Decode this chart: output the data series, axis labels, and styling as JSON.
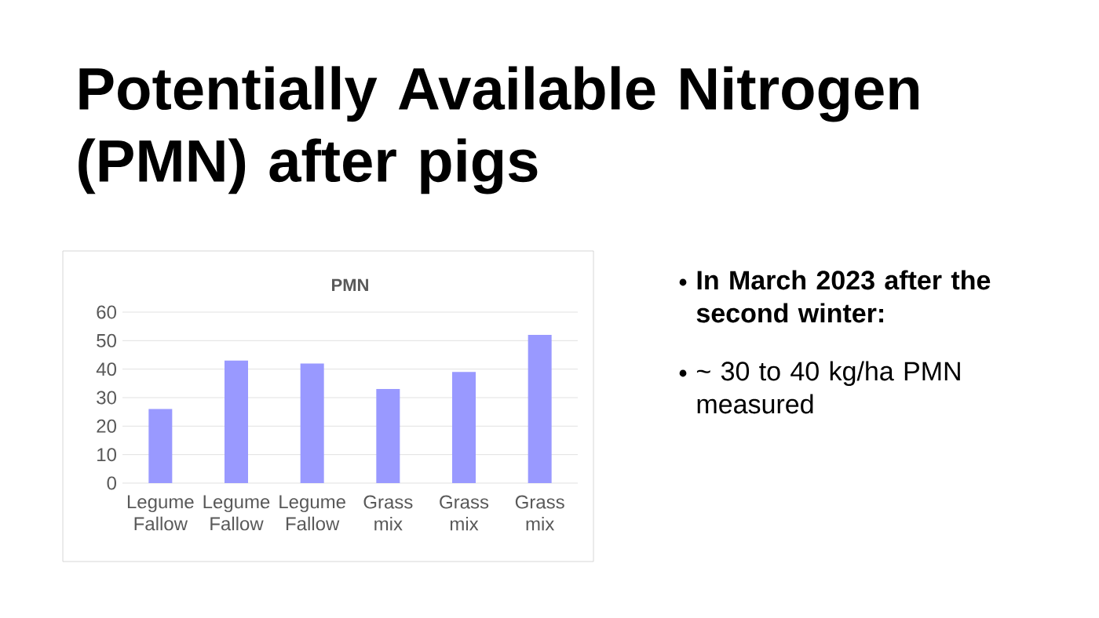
{
  "chart_data": {
    "type": "bar",
    "title": "Potentially Available Nitrogen (PMN) after pigs",
    "subtitle": "PMN",
    "categories": [
      "Legume Fallow",
      "Legume Fallow",
      "Legume Fallow",
      "Grass mix",
      "Grass mix",
      "Grass mix"
    ],
    "values": [
      26,
      43,
      42,
      33,
      39,
      52
    ],
    "color": "#9999ff",
    "ylim": [
      0,
      60
    ],
    "yticks": [
      0,
      10,
      20,
      30,
      40,
      50,
      60
    ],
    "grid": "y",
    "annotations": [
      "In March 2023 after the second winter:",
      "~ 30 to 40 kg/ha PMN measured"
    ]
  }
}
